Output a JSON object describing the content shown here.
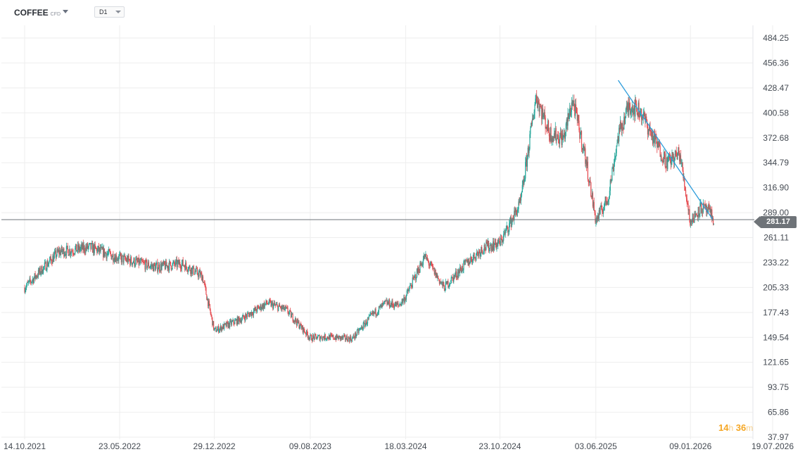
{
  "header": {
    "symbol": "COFFEE",
    "symbol_type": "CFD",
    "timeframe": "D1"
  },
  "current_price": "281.17",
  "countdown": {
    "hours": "14",
    "hours_unit": "h",
    "minutes": "36",
    "minutes_unit": "m"
  },
  "colors": {
    "up_candle": "#26a69a",
    "down_candle": "#e5484d",
    "trendline": "#2d9cdb",
    "price_line": "#6e7378",
    "grid": "#eeeeee",
    "countdown": "#f5a623"
  },
  "chart_data": {
    "type": "line",
    "style": "candlestick",
    "title": "",
    "xlabel": "",
    "ylabel": "",
    "grid": true,
    "y_axis_position": "right",
    "x": [
      "2021-10-14",
      "2022-01-01",
      "2022-03-15",
      "2022-05-23",
      "2022-08-15",
      "2022-10-15",
      "2022-12-01",
      "2022-12-29",
      "2023-03-01",
      "2023-05-01",
      "2023-06-15",
      "2023-08-09",
      "2023-09-15",
      "2023-11-15",
      "2024-01-01",
      "2024-02-01",
      "2024-03-01",
      "2024-03-18",
      "2024-05-01",
      "2024-06-15",
      "2024-08-01",
      "2024-09-15",
      "2024-10-23",
      "2024-12-10",
      "2025-01-15",
      "2025-02-15",
      "2025-03-20",
      "2025-04-10",
      "2025-05-10",
      "2025-06-03",
      "2025-07-01",
      "2025-07-25",
      "2025-08-20",
      "2025-09-15",
      "2025-10-15",
      "2025-11-15",
      "2025-12-15",
      "2026-01-09",
      "2026-02-01",
      "2026-02-20",
      "2026-03-05"
    ],
    "series": [
      {
        "values": [
          205,
          245,
          250,
          238,
          228,
          232,
          218,
          157,
          170,
          188,
          180,
          149,
          150,
          148,
          175,
          188,
          185,
          195,
          240,
          205,
          230,
          250,
          255,
          300,
          420,
          378,
          372,
          415,
          350,
          280,
          305,
          375,
          410,
          402,
          372,
          345,
          355,
          278,
          295,
          290,
          281.17
        ]
      }
    ],
    "trendline": {
      "start": [
        "2025-07-25",
        437
      ],
      "end": [
        "2026-03-01",
        282
      ]
    },
    "y_ticks": [
      "484.25",
      "456.36",
      "428.47",
      "400.58",
      "372.68",
      "344.79",
      "316.90",
      "289.00",
      "261.11",
      "233.22",
      "205.33",
      "177.43",
      "149.54",
      "121.65",
      "93.75",
      "65.86",
      "37.97"
    ],
    "x_ticks": [
      "14.10.2021",
      "23.05.2022",
      "29.12.2022",
      "09.08.2023",
      "18.03.2024",
      "23.10.2024",
      "03.06.2025",
      "09.01.2026",
      "19.07.2026"
    ],
    "ylim": [
      37.97,
      484.25
    ],
    "xlim": [
      "2021-10-14",
      "2026-07-19"
    ]
  }
}
